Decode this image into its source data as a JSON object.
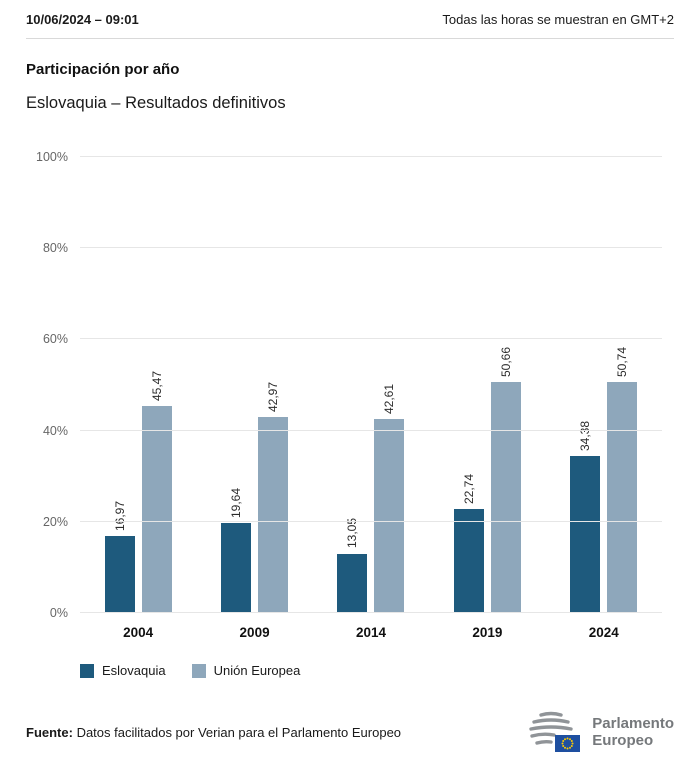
{
  "header": {
    "datetime": "10/06/2024 – 09:01",
    "timezone_note": "Todas las horas se muestran en GMT+2"
  },
  "chart_data": {
    "type": "bar",
    "title": "Participación por año",
    "subtitle": "Eslovaquia – Resultados definitivos",
    "categories": [
      "2004",
      "2009",
      "2014",
      "2019",
      "2024"
    ],
    "series": [
      {
        "name": "Eslovaquia",
        "color": "#1e5a7d",
        "values": [
          16.97,
          19.64,
          13.05,
          22.74,
          34.38
        ],
        "labels": [
          "16,97",
          "19,64",
          "13,05",
          "22,74",
          "34,38"
        ]
      },
      {
        "name": "Unión Europea",
        "color": "#8ea7bb",
        "values": [
          45.47,
          42.97,
          42.61,
          50.66,
          50.74
        ],
        "labels": [
          "45,47",
          "42,97",
          "42,61",
          "50,66",
          "50,74"
        ]
      }
    ],
    "ylim": [
      0,
      100
    ],
    "yticks": [
      0,
      20,
      40,
      60,
      80,
      100
    ],
    "ytick_labels": [
      "0%",
      "20%",
      "40%",
      "60%",
      "80%",
      "100%"
    ],
    "grid": true,
    "legend_position": "bottom",
    "value_label_rotation": -90
  },
  "footer": {
    "source_label": "Fuente:",
    "source_text": " Datos facilitados por Verian para el Parlamento Europeo",
    "logo": {
      "line1": "Parlamento",
      "line2": "Europeo"
    }
  }
}
